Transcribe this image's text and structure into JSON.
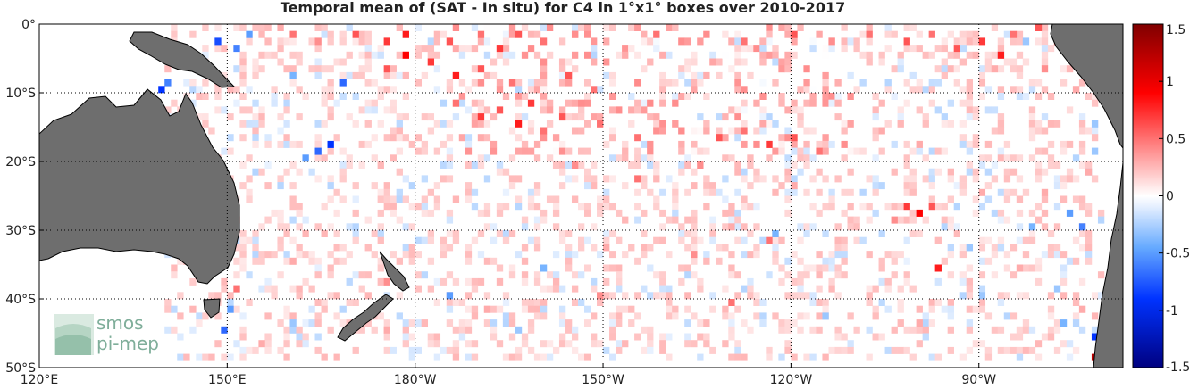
{
  "chart_data": {
    "type": "heatmap",
    "title": "Temporal mean of (SAT - In situ) for C4 in 1°x1° boxes over 2010-2017",
    "x_ticks": [
      "120°E",
      "150°E",
      "180°W",
      "150°W",
      "120°W",
      "90°W"
    ],
    "x_tick_values": [
      120,
      150,
      180,
      210,
      240,
      270
    ],
    "y_ticks": [
      "0°",
      "10°S",
      "20°S",
      "30°S",
      "40°S",
      "50°S"
    ],
    "y_tick_values": [
      0,
      -10,
      -20,
      -30,
      -40,
      -50
    ],
    "xlim": [
      120,
      293
    ],
    "ylim": [
      -50,
      0
    ],
    "grid": true,
    "colorbar": {
      "ticks": [
        "1.5",
        "1",
        "0.5",
        "0",
        "-0.5",
        "-1",
        "-1.5"
      ],
      "tick_values": [
        1.5,
        1,
        0.5,
        0,
        -0.5,
        -1,
        -1.5
      ],
      "range": [
        -1.5,
        1.5
      ],
      "colors": [
        "#000080",
        "#0000ff",
        "#3399ff",
        "#ffffff",
        "#ff6666",
        "#ff0000",
        "#800000"
      ]
    },
    "cells": [
      [
        158,
        -1,
        0.3
      ],
      [
        160,
        -2,
        0.5
      ],
      [
        164,
        -3,
        0.4
      ],
      [
        170,
        -2,
        0.6
      ],
      [
        175,
        -3,
        0.7
      ],
      [
        178,
        -2,
        0.8
      ],
      [
        185,
        -3,
        0.6
      ],
      [
        190,
        -2,
        0.5
      ],
      [
        193,
        -4,
        0.7
      ],
      [
        196,
        -2,
        0.6
      ],
      [
        200,
        -3,
        0.5
      ],
      [
        205,
        -2,
        0.4
      ],
      [
        210,
        -3,
        0.3
      ],
      [
        218,
        -2,
        0.5
      ],
      [
        226,
        -2,
        0.4
      ],
      [
        232,
        -3,
        0.5
      ],
      [
        240,
        -2,
        0.6
      ],
      [
        246,
        -3,
        0.4
      ],
      [
        252,
        -2,
        0.5
      ],
      [
        258,
        -3,
        0.6
      ],
      [
        262,
        -2,
        0.5
      ],
      [
        266,
        -4,
        0.6
      ],
      [
        270,
        -3,
        0.7
      ],
      [
        273,
        -5,
        0.8
      ],
      [
        275,
        -2,
        0.5
      ],
      [
        277,
        -3,
        -0.3
      ],
      [
        140,
        -9,
        -0.6
      ],
      [
        139,
        -10,
        -0.9
      ],
      [
        148,
        -3,
        -0.8
      ],
      [
        151,
        -4,
        -0.6
      ],
      [
        153,
        -2,
        -0.5
      ],
      [
        160,
        -8,
        -0.4
      ],
      [
        168,
        -9,
        -0.7
      ],
      [
        175,
        -7,
        0.6
      ],
      [
        178,
        -5,
        0.9
      ],
      [
        182,
        -6,
        0.7
      ],
      [
        186,
        -8,
        0.8
      ],
      [
        190,
        -7,
        0.6
      ],
      [
        195,
        -9,
        0.5
      ],
      [
        200,
        -6,
        0.4
      ],
      [
        204,
        -8,
        0.6
      ],
      [
        208,
        -10,
        0.5
      ],
      [
        186,
        -12,
        0.5
      ],
      [
        190,
        -14,
        0.7
      ],
      [
        193,
        -13,
        0.6
      ],
      [
        196,
        -15,
        0.8
      ],
      [
        198,
        -12,
        0.7
      ],
      [
        200,
        -16,
        0.5
      ],
      [
        203,
        -14,
        0.6
      ],
      [
        206,
        -12,
        0.4
      ],
      [
        209,
        -15,
        0.5
      ],
      [
        212,
        -13,
        0.4
      ],
      [
        215,
        -17,
        0.5
      ],
      [
        218,
        -14,
        0.3
      ],
      [
        222,
        -16,
        0.4
      ],
      [
        228,
        -17,
        0.6
      ],
      [
        232,
        -16,
        0.5
      ],
      [
        236,
        -18,
        0.7
      ],
      [
        240,
        -17,
        0.6
      ],
      [
        244,
        -19,
        0.5
      ],
      [
        248,
        -18,
        0.4
      ],
      [
        254,
        -16,
        0.3
      ],
      [
        260,
        -18,
        0.3
      ],
      [
        166,
        -18,
        -0.9
      ],
      [
        164,
        -19,
        -0.7
      ],
      [
        162,
        -20,
        -0.5
      ],
      [
        205,
        -21,
        0.4
      ],
      [
        215,
        -23,
        0.5
      ],
      [
        225,
        -21,
        0.4
      ],
      [
        240,
        -24,
        0.3
      ],
      [
        258,
        -27,
        0.7
      ],
      [
        260,
        -28,
        0.9
      ],
      [
        262,
        -27,
        0.6
      ],
      [
        256,
        -29,
        0.4
      ],
      [
        270,
        -25,
        0.3
      ],
      [
        230,
        -30,
        0.3
      ],
      [
        237,
        -31,
        -0.4
      ],
      [
        236,
        -32,
        0.5
      ],
      [
        210,
        -33,
        0.3
      ],
      [
        224,
        -34,
        0.4
      ],
      [
        263,
        -36,
        0.8
      ],
      [
        268,
        -33,
        -0.3
      ],
      [
        200,
        -36,
        -0.4
      ],
      [
        160,
        -35,
        0.3
      ],
      [
        175,
        -38,
        0.4
      ],
      [
        185,
        -40,
        -0.5
      ],
      [
        191,
        -42,
        0.3
      ],
      [
        196,
        -45,
        -0.3
      ],
      [
        172,
        -43,
        -0.7
      ],
      [
        175,
        -45,
        0.3
      ],
      [
        151,
        -39,
        0.5
      ],
      [
        150,
        -42,
        -0.5
      ],
      [
        149,
        -45,
        -0.7
      ],
      [
        155,
        -47,
        0.3
      ],
      [
        160,
        -44,
        -0.3
      ],
      [
        209,
        -40,
        0.4
      ],
      [
        230,
        -41,
        0.5
      ],
      [
        245,
        -43,
        -0.3
      ],
      [
        260,
        -44,
        0.3
      ],
      [
        283,
        -44,
        -0.4
      ],
      [
        288,
        -46,
        -0.9
      ],
      [
        289,
        -49,
        0.9
      ],
      [
        288,
        -49,
        1.2
      ],
      [
        286,
        -42,
        0.3
      ],
      [
        282,
        -39,
        -0.3
      ],
      [
        276,
        -36,
        0.3
      ],
      [
        270,
        -40,
        -0.3
      ],
      [
        278,
        -30,
        -0.4
      ],
      [
        280,
        -25,
        0.3
      ],
      [
        284,
        -28,
        -0.5
      ],
      [
        286,
        -30,
        -0.6
      ],
      [
        287,
        -22,
        0.3
      ],
      [
        288,
        -19,
        -0.3
      ],
      [
        288,
        -15,
        -0.3
      ],
      [
        285,
        -10,
        0.3
      ],
      [
        280,
        -7,
        0.4
      ],
      [
        282,
        -3,
        0.5
      ],
      [
        279,
        -1,
        0.6
      ],
      [
        272,
        -7,
        0.3
      ]
    ]
  }
}
